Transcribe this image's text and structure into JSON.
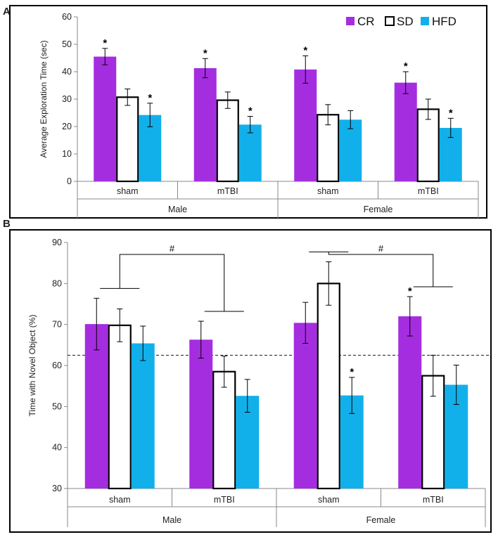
{
  "colors": {
    "CR": "#a52de0",
    "SD": "#ffffff",
    "HFD": "#12b0ea",
    "axis": "#888888",
    "frame": "#000000"
  },
  "legend": [
    {
      "key": "CR",
      "label": "CR"
    },
    {
      "key": "SD",
      "label": "SD"
    },
    {
      "key": "HFD",
      "label": "HFD"
    }
  ],
  "chart_data": [
    {
      "panel": "A",
      "type": "bar",
      "ylabel": "Average  Exploration Time (sec)",
      "ylim": [
        0,
        60
      ],
      "yticks": [
        0,
        10,
        20,
        30,
        40,
        50,
        60
      ],
      "categories": [
        "sham",
        "mTBI",
        "sham",
        "mTBI"
      ],
      "groups": [
        "Male",
        "Female"
      ],
      "legend_position": "top-right",
      "series": [
        {
          "name": "CR",
          "values": [
            45.5,
            41.3,
            40.8,
            36.0
          ],
          "errors": [
            3.0,
            3.5,
            5.0,
            4.0
          ],
          "sig": [
            "*",
            "*",
            "*",
            "*"
          ]
        },
        {
          "name": "SD",
          "values": [
            30.7,
            29.6,
            24.3,
            26.3
          ],
          "errors": [
            3.0,
            3.0,
            3.7,
            3.7
          ],
          "sig": [
            "",
            "",
            "",
            ""
          ]
        },
        {
          "name": "HFD",
          "values": [
            24.2,
            20.7,
            22.5,
            19.5
          ],
          "errors": [
            4.3,
            3.0,
            3.3,
            3.5
          ],
          "sig": [
            "*",
            "*",
            "",
            "*"
          ]
        }
      ]
    },
    {
      "panel": "B",
      "type": "bar",
      "ylabel": "Time with Novel  Object (%)",
      "ylim": [
        30,
        90
      ],
      "yticks": [
        30,
        40,
        50,
        60,
        70,
        80,
        90
      ],
      "categories": [
        "sham",
        "mTBI",
        "sham",
        "mTBI"
      ],
      "groups": [
        "Male",
        "Female"
      ],
      "reference_line": 62.5,
      "series": [
        {
          "name": "CR",
          "values": [
            70.1,
            66.3,
            70.4,
            72.0
          ],
          "errors": [
            6.3,
            4.5,
            5.0,
            4.8
          ],
          "sig": [
            "",
            "",
            "",
            "*"
          ]
        },
        {
          "name": "SD",
          "values": [
            69.8,
            58.5,
            80.0,
            57.5
          ],
          "errors": [
            4.0,
            3.8,
            5.3,
            5.0
          ],
          "sig": [
            "",
            "",
            "",
            ""
          ]
        },
        {
          "name": "HFD",
          "values": [
            65.4,
            52.6,
            52.7,
            55.3
          ],
          "errors": [
            4.2,
            4.0,
            4.4,
            4.8
          ],
          "sig": [
            "",
            "",
            "*",
            ""
          ]
        }
      ],
      "brackets": [
        {
          "label": "#",
          "from_category": 0,
          "to_category": 1
        },
        {
          "label": "#",
          "from_category": 2,
          "to_category": 3
        }
      ]
    }
  ],
  "panel_labels": {
    "a": "A",
    "b": "B"
  }
}
